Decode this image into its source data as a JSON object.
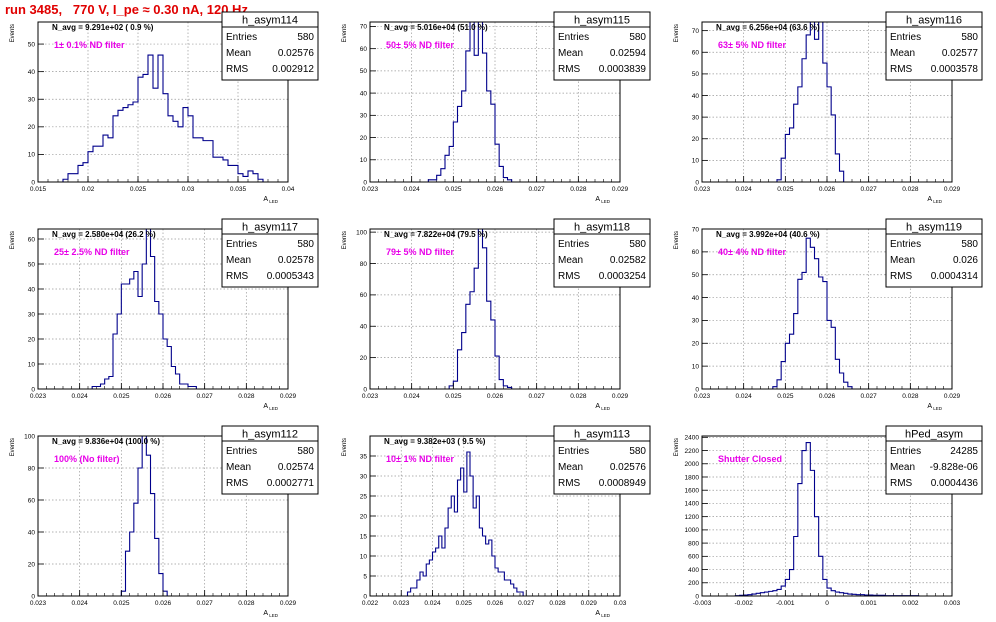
{
  "header": {
    "run_title": "run 3485,   770 V, I_pe ≈ 0.30 nA, 120 Hz"
  },
  "chart_data": [
    {
      "type": "histogram",
      "stats_name": "h_asym114",
      "n_avg": "N_avg = 9.291e+02 ( 0.9 %)",
      "annotation": "1± 0.1% ND filter",
      "entries": "580",
      "mean": "0.02576",
      "rms": "0.002912",
      "xlim": [
        0.015,
        0.04
      ],
      "ylim": [
        0,
        58
      ],
      "xticks": [
        0.015,
        0.02,
        0.025,
        0.03,
        0.035,
        0.04
      ],
      "xticklabels": [
        "0.015",
        "0.02",
        "0.025",
        "0.03",
        "0.035",
        "0.04"
      ],
      "yticks": [
        0,
        10,
        20,
        30,
        40,
        50
      ],
      "ylabel": "Events",
      "xlabel": "A",
      "xlabel_sub": "LED",
      "bins": {
        "x0": 0.0175,
        "w": 0.0005,
        "counts": [
          1,
          3,
          3,
          6,
          7,
          11,
          13,
          13,
          17,
          16,
          24,
          26,
          27,
          28,
          29,
          38,
          39,
          46,
          34,
          46,
          32,
          24,
          22,
          20,
          27,
          24,
          16,
          16,
          15,
          15,
          9,
          9,
          8,
          6,
          6,
          3,
          2,
          4,
          3,
          1
        ]
      }
    },
    {
      "type": "histogram",
      "stats_name": "h_asym115",
      "n_avg": "N_avg = 5.016e+04 (51.0 %)",
      "annotation": "50± 5% ND filter",
      "entries": "580",
      "mean": "0.02594",
      "rms": "0.0003839",
      "xlim": [
        0.023,
        0.029
      ],
      "ylim": [
        0,
        72
      ],
      "xticks": [
        0.023,
        0.024,
        0.025,
        0.026,
        0.027,
        0.028,
        0.029
      ],
      "xticklabels": [
        "0.023",
        "0.024",
        "0.025",
        "0.026",
        "0.027",
        "0.028",
        "0.029"
      ],
      "yticks": [
        0,
        10,
        20,
        30,
        40,
        50,
        60,
        70
      ],
      "ylabel": "Events",
      "xlabel": "A",
      "xlabel_sub": "LED",
      "bins": {
        "x0": 0.0244,
        "w": 0.0001,
        "counts": [
          1,
          1,
          3,
          6,
          12,
          16,
          27,
          34,
          41,
          59,
          72,
          57,
          72,
          58,
          41,
          35,
          17,
          7,
          2,
          1
        ]
      }
    },
    {
      "type": "histogram",
      "stats_name": "h_asym116",
      "n_avg": "N_avg = 6.256e+04 (63.6 %)",
      "annotation": "63± 5% ND filter",
      "entries": "580",
      "mean": "0.02577",
      "rms": "0.0003578",
      "xlim": [
        0.023,
        0.029
      ],
      "ylim": [
        0,
        74
      ],
      "xticks": [
        0.023,
        0.024,
        0.025,
        0.026,
        0.027,
        0.028,
        0.029
      ],
      "xticklabels": [
        "0.023",
        "0.024",
        "0.025",
        "0.026",
        "0.027",
        "0.028",
        "0.029"
      ],
      "yticks": [
        0,
        10,
        20,
        30,
        40,
        50,
        60,
        70
      ],
      "ylabel": "Events",
      "xlabel": "A",
      "xlabel_sub": "LED",
      "bins": {
        "x0": 0.0248,
        "w": 0.0001,
        "counts": [
          1,
          11,
          22,
          25,
          36,
          44,
          57,
          68,
          74,
          66,
          74,
          55,
          44,
          31,
          13,
          5
        ]
      }
    },
    {
      "type": "histogram",
      "stats_name": "h_asym117",
      "n_avg": "N_avg = 2.580e+04 (26.2 %)",
      "annotation": "25± 2.5% ND filter",
      "entries": "580",
      "mean": "0.02578",
      "rms": "0.0005343",
      "xlim": [
        0.023,
        0.029
      ],
      "ylim": [
        0,
        64
      ],
      "xticks": [
        0.023,
        0.024,
        0.025,
        0.026,
        0.027,
        0.028,
        0.029
      ],
      "xticklabels": [
        "0.023",
        "0.024",
        "0.025",
        "0.026",
        "0.027",
        "0.028",
        "0.029"
      ],
      "yticks": [
        0,
        10,
        20,
        30,
        40,
        50,
        60
      ],
      "ylabel": "Events",
      "xlabel": "A",
      "xlabel_sub": "LED",
      "bins": {
        "x0": 0.0243,
        "w": 0.0001,
        "counts": [
          1,
          1,
          2,
          4,
          5,
          22,
          30,
          42,
          42,
          44,
          47,
          37,
          50,
          64,
          53,
          35,
          30,
          20,
          17,
          9,
          6,
          2,
          2,
          1,
          1
        ]
      }
    },
    {
      "type": "histogram",
      "stats_name": "h_asym118",
      "n_avg": "N_avg = 7.822e+04 (79.5 %)",
      "annotation": "79± 5% ND filter",
      "entries": "580",
      "mean": "0.02582",
      "rms": "0.0003254",
      "xlim": [
        0.023,
        0.029
      ],
      "ylim": [
        0,
        102
      ],
      "xticks": [
        0.023,
        0.024,
        0.025,
        0.026,
        0.027,
        0.028,
        0.029
      ],
      "xticklabels": [
        "0.023",
        "0.024",
        "0.025",
        "0.026",
        "0.027",
        "0.028",
        "0.029"
      ],
      "yticks": [
        0,
        20,
        40,
        60,
        80,
        100
      ],
      "ylabel": "Events",
      "xlabel": "A",
      "xlabel_sub": "LED",
      "bins": {
        "x0": 0.0249,
        "w": 0.0001,
        "counts": [
          2,
          5,
          25,
          36,
          54,
          62,
          77,
          102,
          90,
          56,
          44,
          21,
          6,
          2,
          1
        ]
      }
    },
    {
      "type": "histogram",
      "stats_name": "h_asym119",
      "n_avg": "N_avg = 3.992e+04 (40.6 %)",
      "annotation": "40± 4% ND filter",
      "entries": "580",
      "mean": "0.026",
      "rms": "0.0004314",
      "xlim": [
        0.023,
        0.029
      ],
      "ylim": [
        0,
        70
      ],
      "xticks": [
        0.023,
        0.024,
        0.025,
        0.026,
        0.027,
        0.028,
        0.029
      ],
      "xticklabels": [
        "0.023",
        "0.024",
        "0.025",
        "0.026",
        "0.027",
        "0.028",
        "0.029"
      ],
      "yticks": [
        0,
        10,
        20,
        30,
        40,
        50,
        60,
        70
      ],
      "ylabel": "Events",
      "xlabel": "A",
      "xlabel_sub": "LED",
      "bins": {
        "x0": 0.0247,
        "w": 0.0001,
        "counts": [
          1,
          4,
          12,
          20,
          24,
          33,
          48,
          51,
          66,
          62,
          57,
          49,
          47,
          30,
          27,
          13,
          7,
          3,
          1
        ]
      }
    },
    {
      "type": "histogram",
      "stats_name": "h_asym112",
      "n_avg": "N_avg = 9.836e+04 (100.0 %)",
      "annotation": "100% (No filter)",
      "entries": "580",
      "mean": "0.02574",
      "rms": "0.0002771",
      "xlim": [
        0.023,
        0.029
      ],
      "ylim": [
        0,
        100
      ],
      "xticks": [
        0.023,
        0.024,
        0.025,
        0.026,
        0.027,
        0.028,
        0.029
      ],
      "xticklabels": [
        "0.023",
        "0.024",
        "0.025",
        "0.026",
        "0.027",
        "0.028",
        "0.029"
      ],
      "yticks": [
        0,
        20,
        40,
        60,
        80,
        100
      ],
      "ylabel": "Events",
      "xlabel": "A",
      "xlabel_sub": "LED",
      "bins": {
        "x0": 0.025,
        "w": 0.0001,
        "counts": [
          3,
          28,
          40,
          58,
          80,
          100,
          88,
          64,
          36,
          14,
          3
        ]
      }
    },
    {
      "type": "histogram",
      "stats_name": "h_asym113",
      "n_avg": "N_avg = 9.382e+03 ( 9.5 %)",
      "annotation": "10± 1% ND filter",
      "entries": "580",
      "mean": "0.02576",
      "rms": "0.0008949",
      "xlim": [
        0.022,
        0.03
      ],
      "ylim": [
        0,
        40
      ],
      "xticks": [
        0.022,
        0.023,
        0.024,
        0.025,
        0.026,
        0.027,
        0.028,
        0.029,
        0.03
      ],
      "xticklabels": [
        "0.022",
        "0.023",
        "0.024",
        "0.025",
        "0.026",
        "0.027",
        "0.028",
        "0.029",
        "0.03"
      ],
      "yticks": [
        0,
        5,
        10,
        15,
        20,
        25,
        30,
        35
      ],
      "ylabel": "Events",
      "xlabel": "A",
      "xlabel_sub": "LED",
      "bins": {
        "x0": 0.0232,
        "w": 0.0001,
        "counts": [
          1,
          2,
          2,
          4,
          6,
          5,
          8,
          9,
          11,
          12,
          15,
          12,
          17,
          22,
          25,
          21,
          29,
          32,
          26,
          36,
          30,
          22,
          25,
          17,
          15,
          13,
          14,
          10,
          7,
          6,
          6,
          4,
          4,
          3,
          2,
          1,
          1
        ]
      }
    },
    {
      "type": "histogram",
      "stats_name": "hPed_asym",
      "n_avg": "",
      "annotation": "Shutter Closed",
      "entries": "24285",
      "mean": "-9.828e-06",
      "rms": "0.0004436",
      "xlim": [
        -0.003,
        0.003
      ],
      "ylim": [
        0,
        2420
      ],
      "xticks": [
        -0.003,
        -0.002,
        -0.001,
        0,
        0.001,
        0.002,
        0.003
      ],
      "xticklabels": [
        "-0.003",
        "-0.002",
        "-0.001",
        "0",
        "0.001",
        "0.002",
        "0.003"
      ],
      "yticks": [
        0,
        200,
        400,
        600,
        800,
        1000,
        1200,
        1400,
        1600,
        1800,
        2000,
        2200,
        2400
      ],
      "ylabel": "Events",
      "xlabel": "",
      "xlabel_sub": "",
      "bins": {
        "x0": -0.0022,
        "w": 0.0001,
        "counts": [
          5,
          10,
          15,
          20,
          30,
          40,
          50,
          60,
          70,
          80,
          100,
          150,
          250,
          400,
          900,
          1700,
          2200,
          2320,
          1900,
          1200,
          600,
          250,
          120,
          80,
          60,
          50,
          40,
          30,
          25,
          20,
          20,
          15,
          15,
          10,
          10,
          10,
          5,
          5,
          5,
          5,
          5,
          5,
          5,
          5
        ]
      }
    }
  ]
}
